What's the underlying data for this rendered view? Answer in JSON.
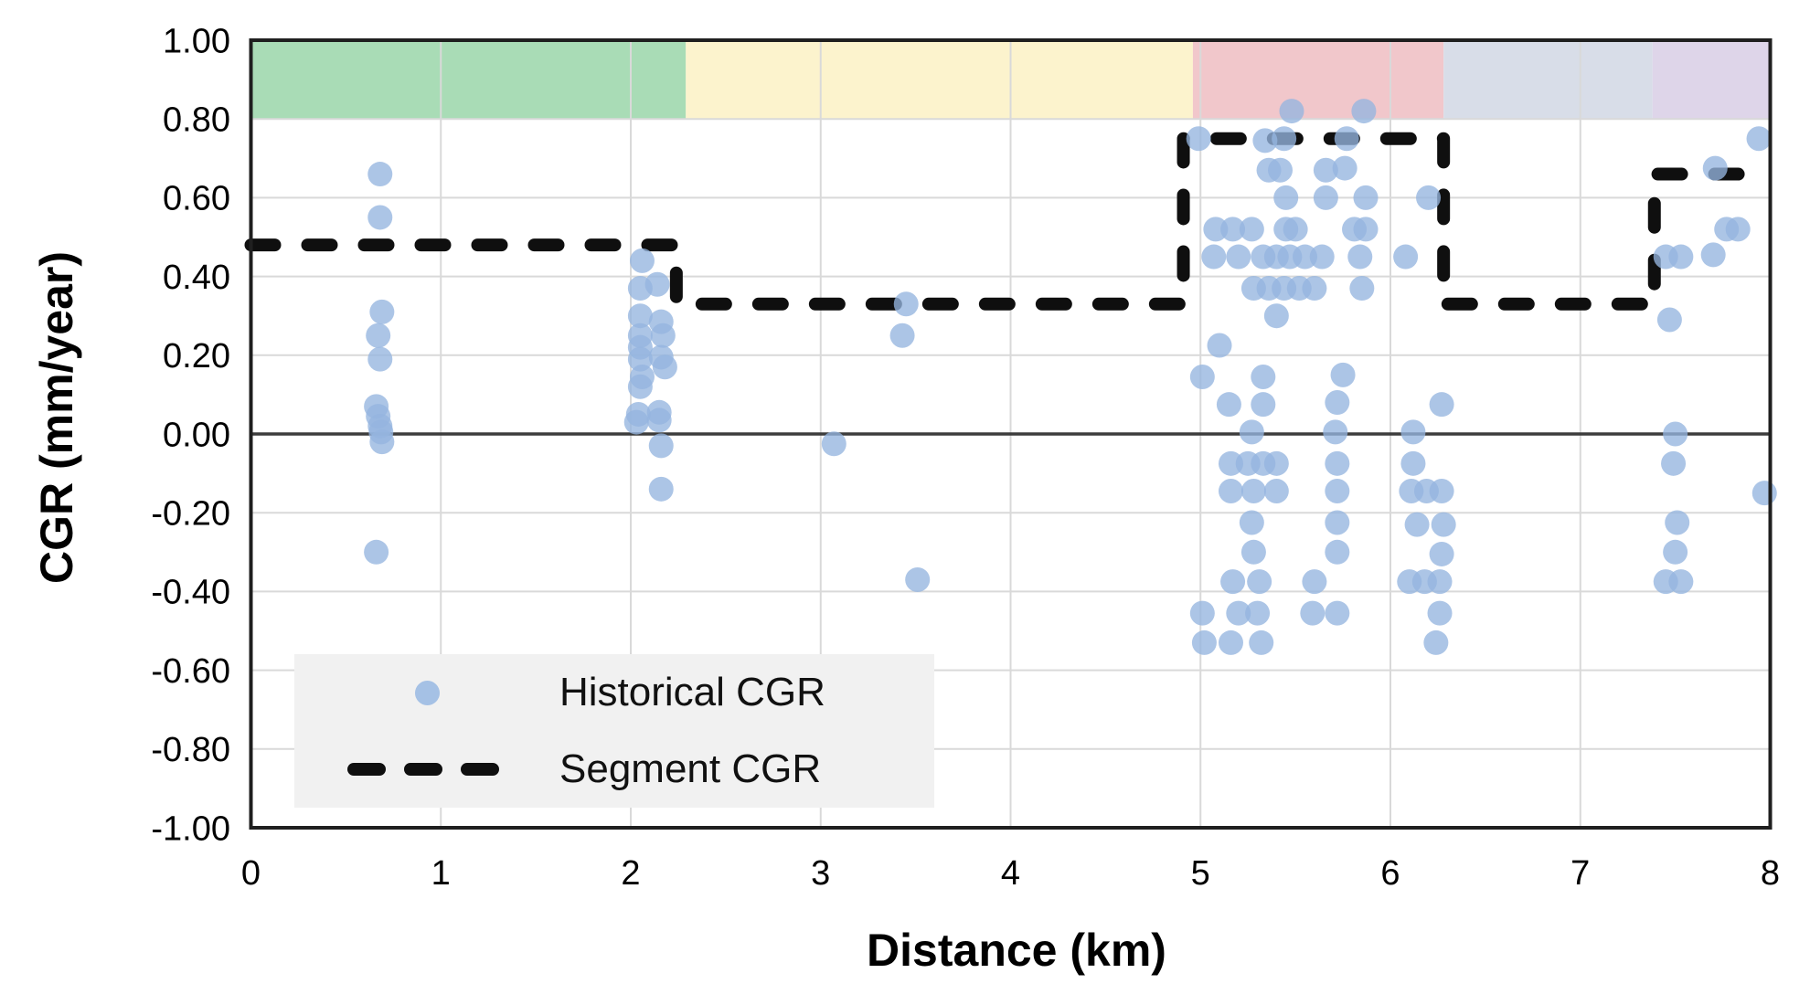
{
  "chart_data": {
    "type": "scatter",
    "title": "",
    "xlabel": "Distance (km)",
    "ylabel": "CGR (mm/year)",
    "xlim": [
      0,
      8
    ],
    "ylim": [
      -1.0,
      1.0
    ],
    "grid": true,
    "legend_position": "inside-bottom-left",
    "xticks": [
      {
        "v": 0,
        "label": "0"
      },
      {
        "v": 1,
        "label": "1"
      },
      {
        "v": 2,
        "label": "2"
      },
      {
        "v": 3,
        "label": "3"
      },
      {
        "v": 4,
        "label": "4"
      },
      {
        "v": 5,
        "label": "5"
      },
      {
        "v": 6,
        "label": "6"
      },
      {
        "v": 7,
        "label": "7"
      },
      {
        "v": 8,
        "label": "8"
      }
    ],
    "yticks": [
      {
        "v": 1.0,
        "label": "1.00"
      },
      {
        "v": 0.8,
        "label": "0.80"
      },
      {
        "v": 0.6,
        "label": "0.60"
      },
      {
        "v": 0.4,
        "label": "0.40"
      },
      {
        "v": 0.2,
        "label": "0.20"
      },
      {
        "v": 0.0,
        "label": "0.00"
      },
      {
        "v": -0.2,
        "label": "-0.20"
      },
      {
        "v": -0.4,
        "label": "-0.40"
      },
      {
        "v": -0.6,
        "label": "-0.60"
      },
      {
        "v": -0.8,
        "label": "-0.80"
      },
      {
        "v": -1.0,
        "label": "-1.00"
      }
    ],
    "colors": {
      "scatter_fill": "#95B5DF",
      "segment_line": "#0f0f0f",
      "grid": "#d9d9d9",
      "zero_line": "#3c3c3c",
      "plot_border": "#1f1f1f",
      "legend_bg": "#f1f1f1",
      "band_green": "#A9DCB6",
      "band_yellow": "#FCF3CD",
      "band_pink": "#F1C7CB",
      "band_gray": "#D8DDE8",
      "band_purple": "#DED5E9"
    },
    "top_bands": [
      {
        "x_start": 0.0,
        "x_end": 2.29,
        "y_start": 0.8,
        "y_end": 1.0,
        "color": "#A9DCB6"
      },
      {
        "x_start": 2.29,
        "x_end": 4.96,
        "y_start": 0.8,
        "y_end": 1.0,
        "color": "#FCF3CD"
      },
      {
        "x_start": 4.96,
        "x_end": 6.28,
        "y_start": 0.8,
        "y_end": 1.0,
        "color": "#F1C7CB"
      },
      {
        "x_start": 6.28,
        "x_end": 7.38,
        "y_start": 0.8,
        "y_end": 1.0,
        "color": "#D8DDE8"
      },
      {
        "x_start": 7.38,
        "x_end": 8.0,
        "y_start": 0.8,
        "y_end": 1.0,
        "color": "#DED5E9"
      }
    ],
    "series": [
      {
        "name": "Historical CGR",
        "type": "scatter",
        "marker": "circle",
        "marker_color": "#95B5DF",
        "points": [
          [
            0.68,
            0.66
          ],
          [
            0.68,
            0.55
          ],
          [
            0.69,
            0.31
          ],
          [
            0.67,
            0.25
          ],
          [
            0.68,
            0.19
          ],
          [
            0.66,
            0.07
          ],
          [
            0.67,
            0.045
          ],
          [
            0.68,
            0.02
          ],
          [
            0.685,
            0.005
          ],
          [
            0.69,
            -0.02
          ],
          [
            0.66,
            -0.3
          ],
          [
            2.06,
            0.44
          ],
          [
            2.05,
            0.37
          ],
          [
            2.14,
            0.38
          ],
          [
            2.05,
            0.3
          ],
          [
            2.16,
            0.285
          ],
          [
            2.05,
            0.25
          ],
          [
            2.17,
            0.25
          ],
          [
            2.05,
            0.22
          ],
          [
            2.16,
            0.195
          ],
          [
            2.05,
            0.19
          ],
          [
            2.18,
            0.17
          ],
          [
            2.06,
            0.145
          ],
          [
            2.05,
            0.12
          ],
          [
            2.04,
            0.05
          ],
          [
            2.15,
            0.055
          ],
          [
            2.03,
            0.03
          ],
          [
            2.15,
            0.035
          ],
          [
            2.16,
            -0.03
          ],
          [
            2.16,
            -0.14
          ],
          [
            3.45,
            0.33
          ],
          [
            3.43,
            0.25
          ],
          [
            3.07,
            -0.025
          ],
          [
            3.51,
            -0.37
          ],
          [
            5.48,
            0.82
          ],
          [
            5.86,
            0.82
          ],
          [
            4.99,
            0.75
          ],
          [
            5.34,
            0.745
          ],
          [
            5.44,
            0.75
          ],
          [
            5.77,
            0.75
          ],
          [
            5.36,
            0.67
          ],
          [
            5.42,
            0.67
          ],
          [
            5.66,
            0.67
          ],
          [
            5.76,
            0.675
          ],
          [
            5.45,
            0.6
          ],
          [
            5.66,
            0.6
          ],
          [
            5.87,
            0.6
          ],
          [
            6.2,
            0.6
          ],
          [
            5.08,
            0.52
          ],
          [
            5.17,
            0.52
          ],
          [
            5.27,
            0.52
          ],
          [
            5.45,
            0.52
          ],
          [
            5.5,
            0.52
          ],
          [
            5.81,
            0.52
          ],
          [
            5.87,
            0.52
          ],
          [
            5.07,
            0.45
          ],
          [
            5.2,
            0.45
          ],
          [
            5.33,
            0.45
          ],
          [
            5.4,
            0.45
          ],
          [
            5.47,
            0.45
          ],
          [
            5.55,
            0.45
          ],
          [
            5.64,
            0.45
          ],
          [
            5.84,
            0.45
          ],
          [
            6.08,
            0.45
          ],
          [
            5.28,
            0.37
          ],
          [
            5.36,
            0.37
          ],
          [
            5.44,
            0.37
          ],
          [
            5.52,
            0.37
          ],
          [
            5.6,
            0.37
          ],
          [
            5.85,
            0.37
          ],
          [
            5.4,
            0.3
          ],
          [
            5.1,
            0.225
          ],
          [
            5.01,
            0.145
          ],
          [
            5.33,
            0.145
          ],
          [
            5.75,
            0.15
          ],
          [
            5.15,
            0.075
          ],
          [
            5.33,
            0.075
          ],
          [
            5.72,
            0.08
          ],
          [
            6.27,
            0.075
          ],
          [
            5.27,
            0.005
          ],
          [
            5.71,
            0.005
          ],
          [
            6.12,
            0.005
          ],
          [
            5.16,
            -0.075
          ],
          [
            5.25,
            -0.075
          ],
          [
            5.33,
            -0.075
          ],
          [
            5.4,
            -0.075
          ],
          [
            5.72,
            -0.075
          ],
          [
            6.12,
            -0.075
          ],
          [
            5.16,
            -0.145
          ],
          [
            5.28,
            -0.145
          ],
          [
            5.4,
            -0.145
          ],
          [
            5.72,
            -0.145
          ],
          [
            6.11,
            -0.145
          ],
          [
            6.19,
            -0.145
          ],
          [
            6.27,
            -0.145
          ],
          [
            5.27,
            -0.225
          ],
          [
            5.72,
            -0.225
          ],
          [
            6.14,
            -0.23
          ],
          [
            6.28,
            -0.23
          ],
          [
            5.28,
            -0.3
          ],
          [
            5.72,
            -0.3
          ],
          [
            6.27,
            -0.305
          ],
          [
            5.17,
            -0.375
          ],
          [
            5.31,
            -0.375
          ],
          [
            5.6,
            -0.375
          ],
          [
            6.1,
            -0.375
          ],
          [
            6.18,
            -0.375
          ],
          [
            6.26,
            -0.375
          ],
          [
            5.01,
            -0.455
          ],
          [
            5.2,
            -0.455
          ],
          [
            5.3,
            -0.455
          ],
          [
            5.59,
            -0.455
          ],
          [
            5.72,
            -0.455
          ],
          [
            6.26,
            -0.455
          ],
          [
            5.02,
            -0.53
          ],
          [
            5.16,
            -0.53
          ],
          [
            5.32,
            -0.53
          ],
          [
            6.24,
            -0.53
          ],
          [
            7.94,
            0.75
          ],
          [
            7.71,
            0.675
          ],
          [
            7.77,
            0.52
          ],
          [
            7.83,
            0.52
          ],
          [
            7.45,
            0.45
          ],
          [
            7.53,
            0.45
          ],
          [
            7.7,
            0.455
          ],
          [
            7.47,
            0.29
          ],
          [
            7.5,
            0.0
          ],
          [
            7.49,
            -0.075
          ],
          [
            7.51,
            -0.225
          ],
          [
            7.5,
            -0.3
          ],
          [
            7.45,
            -0.375
          ],
          [
            7.53,
            -0.375
          ],
          [
            7.97,
            -0.15
          ]
        ]
      },
      {
        "name": "Segment CGR",
        "type": "step-line",
        "dashed": true,
        "line_color": "#0f0f0f",
        "segments": [
          {
            "x_start": 0.0,
            "x_end": 2.24,
            "value": 0.48
          },
          {
            "x_start": 2.24,
            "x_end": 4.91,
            "value": 0.33
          },
          {
            "x_start": 4.91,
            "x_end": 6.28,
            "value": 0.75
          },
          {
            "x_start": 6.28,
            "x_end": 7.39,
            "value": 0.33
          },
          {
            "x_start": 7.39,
            "x_end": 8.0,
            "value": 0.66
          }
        ]
      }
    ]
  },
  "legend": {
    "items": [
      {
        "label": "Historical CGR",
        "marker": "scatter-dot"
      },
      {
        "label": "Segment CGR",
        "marker": "dashed-line"
      }
    ]
  }
}
